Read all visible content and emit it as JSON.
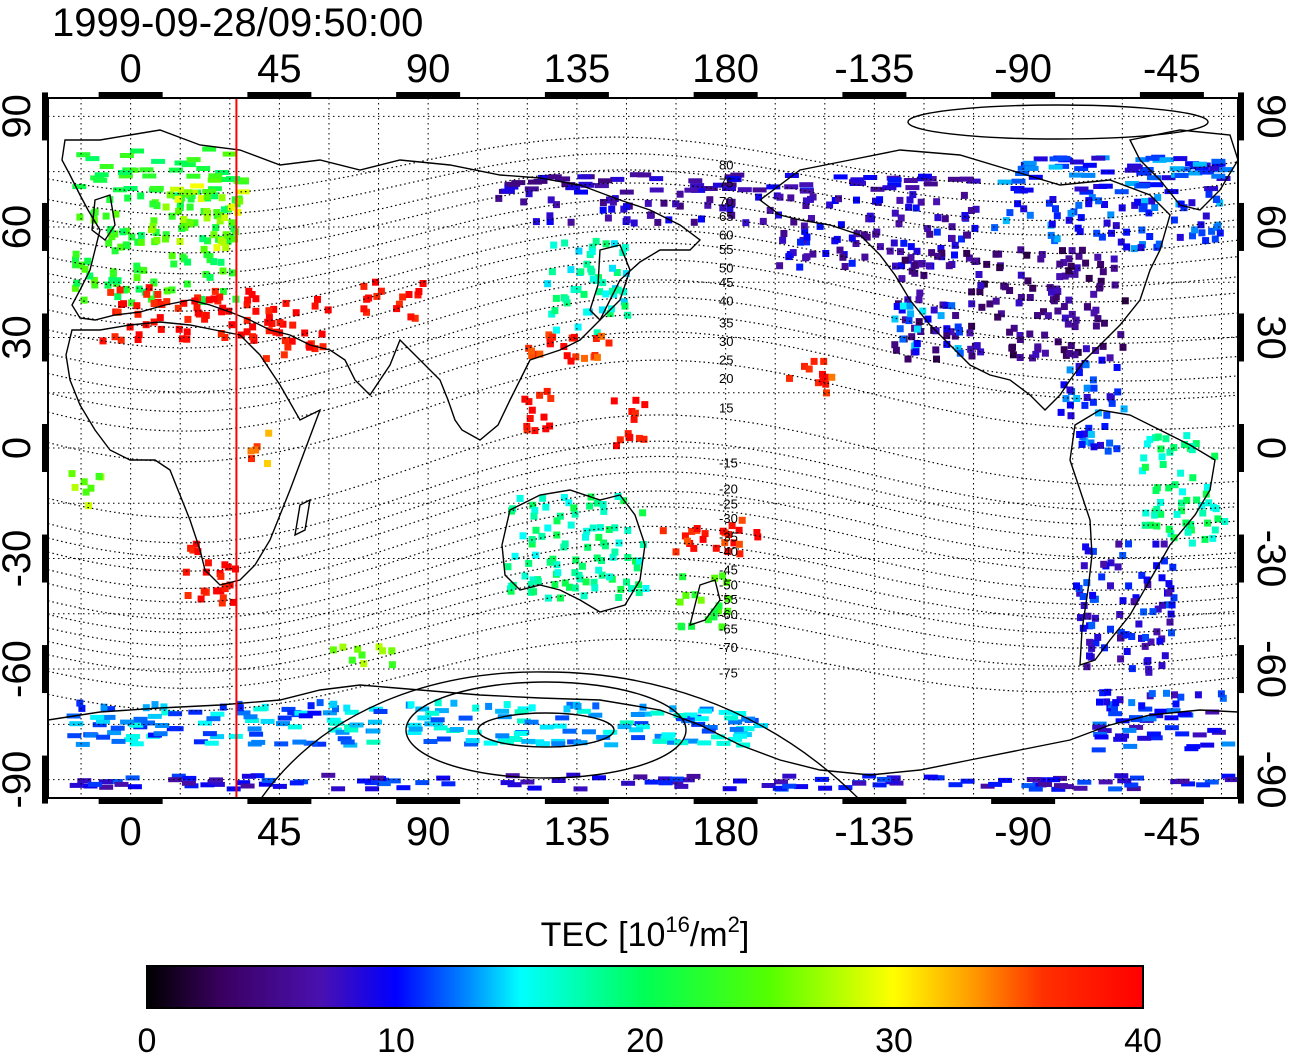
{
  "timestamp": "1999-09-28/09:50:00",
  "map": {
    "projection": "equirectangular",
    "lon_range_unwrapped": [
      -25,
      335
    ],
    "lat_range": [
      -95,
      95
    ],
    "lon_ticks": [
      {
        "value": 0,
        "label": "0"
      },
      {
        "value": 45,
        "label": "45"
      },
      {
        "value": 90,
        "label": "90"
      },
      {
        "value": 135,
        "label": "135"
      },
      {
        "value": 180,
        "label": "180"
      },
      {
        "value": 225,
        "label": "-135"
      },
      {
        "value": 270,
        "label": "-90"
      },
      {
        "value": 315,
        "label": "-45"
      }
    ],
    "lat_ticks": [
      {
        "value": 90,
        "label": "90"
      },
      {
        "value": 60,
        "label": "60"
      },
      {
        "value": 30,
        "label": "30"
      },
      {
        "value": 0,
        "label": "0"
      },
      {
        "value": -30,
        "label": "-30"
      },
      {
        "value": -60,
        "label": "-60"
      },
      {
        "value": -90,
        "label": "-90"
      }
    ],
    "grid": "dotted, 15 deg",
    "marker_line_lon": 32,
    "marker_line_color": "#ff0000"
  },
  "contour_labels": [
    {
      "text": "80",
      "lat": 77
    },
    {
      "text": "75",
      "lat": 72
    },
    {
      "text": "70",
      "lat": 67
    },
    {
      "text": "65",
      "lat": 63
    },
    {
      "text": "60",
      "lat": 58
    },
    {
      "text": "55",
      "lat": 54
    },
    {
      "text": "50",
      "lat": 49
    },
    {
      "text": "45",
      "lat": 45
    },
    {
      "text": "40",
      "lat": 40
    },
    {
      "text": "35",
      "lat": 34
    },
    {
      "text": "30",
      "lat": 29
    },
    {
      "text": "25",
      "lat": 24
    },
    {
      "text": "20",
      "lat": 19
    },
    {
      "text": "15",
      "lat": 11
    },
    {
      "text": "-15",
      "lat": -4
    },
    {
      "text": "-20",
      "lat": -11
    },
    {
      "text": "-25",
      "lat": -15
    },
    {
      "text": "-30",
      "lat": -19
    },
    {
      "text": "-35",
      "lat": -24
    },
    {
      "text": "-40",
      "lat": -28
    },
    {
      "text": "-45",
      "lat": -33
    },
    {
      "text": "-50",
      "lat": -37
    },
    {
      "text": "-55",
      "lat": -41
    },
    {
      "text": "-60",
      "lat": -45
    },
    {
      "text": "-65",
      "lat": -49
    },
    {
      "text": "-70",
      "lat": -54
    },
    {
      "text": "-75",
      "lat": -61
    }
  ],
  "colorbar": {
    "title": "TEC  [10",
    "title_sup": "16",
    "title_mid": "/m",
    "title_sup2": "2",
    "title_end": "]",
    "min": 0,
    "max": 40,
    "tick_labels": [
      "0",
      "10",
      "20",
      "30",
      "40"
    ],
    "stops": [
      {
        "v": 0,
        "color": "#000000"
      },
      {
        "v": 3,
        "color": "#3a0060"
      },
      {
        "v": 7,
        "color": "#4a10b0"
      },
      {
        "v": 10,
        "color": "#0000ff"
      },
      {
        "v": 13,
        "color": "#0090ff"
      },
      {
        "v": 15,
        "color": "#00ffff"
      },
      {
        "v": 20,
        "color": "#00ff55"
      },
      {
        "v": 25,
        "color": "#55ff00"
      },
      {
        "v": 30,
        "color": "#ffff00"
      },
      {
        "v": 33,
        "color": "#ffa000"
      },
      {
        "v": 36,
        "color": "#ff3000"
      },
      {
        "v": 40,
        "color": "#ff0000"
      }
    ]
  },
  "tec_regions": [
    {
      "name": "northern-europe",
      "lon": [
        -18,
        32
      ],
      "lat": [
        40,
        82
      ],
      "value": 22
    },
    {
      "name": "scandinavia",
      "lon": [
        5,
        32
      ],
      "lat": [
        55,
        72
      ],
      "value": 27
    },
    {
      "name": "southern-europe",
      "lon": [
        -10,
        40
      ],
      "lat": [
        30,
        45
      ],
      "value": 39
    },
    {
      "name": "middle-east",
      "lon": [
        40,
        60
      ],
      "lat": [
        25,
        42
      ],
      "value": 39
    },
    {
      "name": "central-asia",
      "lon": [
        68,
        88
      ],
      "lat": [
        36,
        46
      ],
      "value": 39
    },
    {
      "name": "japan-north",
      "lon": [
        125,
        150
      ],
      "lat": [
        32,
        58
      ],
      "value": 17
    },
    {
      "name": "japan-south",
      "lon": [
        118,
        145
      ],
      "lat": [
        22,
        32
      ],
      "value": 37
    },
    {
      "name": "philippines",
      "lon": [
        118,
        128
      ],
      "lat": [
        5,
        20
      ],
      "value": 39
    },
    {
      "name": "north-pacific-arc",
      "lon": [
        110,
        195
      ],
      "lat": [
        62,
        75
      ],
      "value": 7
    },
    {
      "name": "alaska-canada",
      "lon": [
        195,
        255
      ],
      "lat": [
        50,
        75
      ],
      "value": 8
    },
    {
      "name": "north-america",
      "lon": [
        230,
        300
      ],
      "lat": [
        25,
        55
      ],
      "value": 5
    },
    {
      "name": "usa-west",
      "lon": [
        230,
        250
      ],
      "lat": [
        25,
        40
      ],
      "value": 12
    },
    {
      "name": "canada-east",
      "lon": [
        260,
        330
      ],
      "lat": [
        55,
        80
      ],
      "value": 11
    },
    {
      "name": "caribbean",
      "lon": [
        280,
        300
      ],
      "lat": [
        0,
        25
      ],
      "value": 11
    },
    {
      "name": "hawaii",
      "lon": [
        198,
        212
      ],
      "lat": [
        15,
        25
      ],
      "value": 37
    },
    {
      "name": "central-pacific",
      "lon": [
        145,
        155
      ],
      "lat": [
        0,
        15
      ],
      "value": 39
    },
    {
      "name": "south-america-east",
      "lon": [
        305,
        330
      ],
      "lat": [
        -25,
        5
      ],
      "value": 18
    },
    {
      "name": "south-america-south",
      "lon": [
        285,
        315
      ],
      "lat": [
        -60,
        -25
      ],
      "value": 9
    },
    {
      "name": "africa-south",
      "lon": [
        15,
        32
      ],
      "lat": [
        -42,
        -25
      ],
      "value": 39
    },
    {
      "name": "africa-west",
      "lon": [
        -20,
        -10
      ],
      "lat": [
        -15,
        -5
      ],
      "value": 26
    },
    {
      "name": "east-africa",
      "lon": [
        35,
        42
      ],
      "lat": [
        -5,
        5
      ],
      "value": 34
    },
    {
      "name": "australia",
      "lon": [
        112,
        155
      ],
      "lat": [
        -40,
        -12
      ],
      "value": 18
    },
    {
      "name": "new-zealand",
      "lon": [
        165,
        180
      ],
      "lat": [
        -48,
        -33
      ],
      "value": 23
    },
    {
      "name": "tasman-north",
      "lon": [
        160,
        190
      ],
      "lat": [
        -28,
        -18
      ],
      "value": 38
    },
    {
      "name": "southern-ocean-africa",
      "lon": [
        60,
        80
      ],
      "lat": [
        -58,
        -52
      ],
      "value": 25
    },
    {
      "name": "antarctic-ring-west",
      "lon": [
        -20,
        60
      ],
      "lat": [
        -80,
        -68
      ],
      "value": 13
    },
    {
      "name": "antarctic-ring-east",
      "lon": [
        60,
        190
      ],
      "lat": [
        -80,
        -68
      ],
      "value": 14
    },
    {
      "name": "antarctic-ring-am",
      "lon": [
        290,
        330
      ],
      "lat": [
        -82,
        -65
      ],
      "value": 10
    },
    {
      "name": "south-pole-band",
      "lon": [
        -20,
        335
      ],
      "lat": [
        -92,
        -88
      ],
      "value": 9
    }
  ]
}
